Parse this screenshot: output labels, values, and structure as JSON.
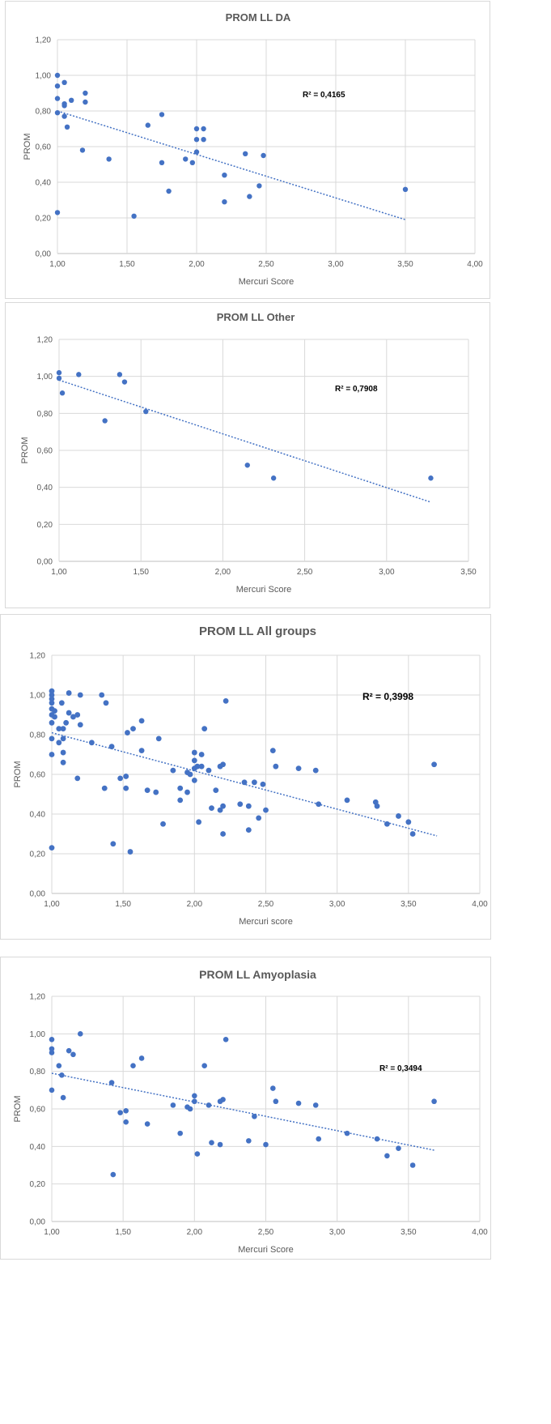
{
  "chart_data": [
    {
      "type": "scatter",
      "title": "PROM LL DA",
      "xlabel": "Mercuri Score",
      "ylabel": "PROM",
      "xlim": [
        1.0,
        4.0
      ],
      "ylim": [
        0.0,
        1.2
      ],
      "xticks": [
        "1,00",
        "1,50",
        "2,00",
        "2,50",
        "3,00",
        "3,50",
        "4,00"
      ],
      "yticks": [
        "0,00",
        "0,20",
        "0,40",
        "0,60",
        "0,80",
        "1,00",
        "1,20"
      ],
      "r2_label": "R² = 0,4165",
      "trendline": {
        "x": [
          1.0,
          3.5
        ],
        "y": [
          0.8,
          0.19
        ]
      },
      "grid": true,
      "series": [
        {
          "color": "#4472c4",
          "points": [
            [
              1.0,
              1.0
            ],
            [
              1.0,
              0.94
            ],
            [
              1.0,
              0.87
            ],
            [
              1.0,
              0.79
            ],
            [
              1.0,
              0.23
            ],
            [
              1.05,
              0.96
            ],
            [
              1.05,
              0.84
            ],
            [
              1.05,
              0.83
            ],
            [
              1.05,
              0.77
            ],
            [
              1.07,
              0.71
            ],
            [
              1.1,
              0.86
            ],
            [
              1.2,
              0.9
            ],
            [
              1.2,
              0.85
            ],
            [
              1.18,
              0.58
            ],
            [
              1.37,
              0.53
            ],
            [
              1.55,
              0.21
            ],
            [
              1.65,
              0.72
            ],
            [
              1.75,
              0.78
            ],
            [
              1.75,
              0.51
            ],
            [
              1.8,
              0.35
            ],
            [
              1.92,
              0.53
            ],
            [
              1.97,
              0.51
            ],
            [
              2.0,
              0.7
            ],
            [
              2.0,
              0.64
            ],
            [
              2.0,
              0.57
            ],
            [
              2.05,
              0.7
            ],
            [
              2.05,
              0.64
            ],
            [
              2.2,
              0.44
            ],
            [
              2.2,
              0.29
            ],
            [
              2.35,
              0.56
            ],
            [
              2.38,
              0.32
            ],
            [
              2.45,
              0.38
            ],
            [
              2.48,
              0.55
            ],
            [
              3.5,
              0.36
            ]
          ]
        }
      ]
    },
    {
      "type": "scatter",
      "title": "PROM LL Other",
      "xlabel": "Mercuri Score",
      "ylabel": "PROM",
      "xlim": [
        1.0,
        3.5
      ],
      "ylim": [
        0.0,
        1.2
      ],
      "xticks": [
        "1,00",
        "1,50",
        "2,00",
        "2,50",
        "3,00",
        "3,50"
      ],
      "yticks": [
        "0,00",
        "0,20",
        "0,40",
        "0,60",
        "0,80",
        "1,00",
        "1,20"
      ],
      "r2_label": "R² = 0,7908",
      "trendline": {
        "x": [
          1.0,
          3.27
        ],
        "y": [
          0.98,
          0.32
        ]
      },
      "grid": true,
      "series": [
        {
          "color": "#4472c4",
          "points": [
            [
              1.0,
              1.02
            ],
            [
              1.0,
              0.99
            ],
            [
              1.02,
              0.91
            ],
            [
              1.12,
              1.01
            ],
            [
              1.28,
              0.76
            ],
            [
              1.37,
              1.01
            ],
            [
              1.4,
              0.97
            ],
            [
              1.53,
              0.81
            ],
            [
              2.15,
              0.52
            ],
            [
              2.31,
              0.45
            ],
            [
              3.27,
              0.45
            ]
          ]
        }
      ]
    },
    {
      "type": "scatter",
      "title": "PROM LL All groups",
      "xlabel": "Mercuri score",
      "ylabel": "PROM",
      "xlim": [
        1.0,
        4.0
      ],
      "ylim": [
        0.0,
        1.2
      ],
      "xticks": [
        "1,00",
        "1,50",
        "2,00",
        "2,50",
        "3,00",
        "3,50",
        "4,00"
      ],
      "yticks": [
        "0,00",
        "0,20",
        "0,40",
        "0,60",
        "0,80",
        "1,00",
        "1,20"
      ],
      "r2_label": "R² = 0,3998",
      "trendline": {
        "x": [
          1.0,
          3.7
        ],
        "y": [
          0.81,
          0.29
        ]
      },
      "grid": true,
      "series": [
        {
          "color": "#4472c4",
          "points": [
            [
              1.0,
              1.02
            ],
            [
              1.0,
              1.0
            ],
            [
              1.0,
              0.98
            ],
            [
              1.0,
              0.96
            ],
            [
              1.0,
              0.93
            ],
            [
              1.0,
              0.9
            ],
            [
              1.0,
              0.86
            ],
            [
              1.0,
              0.78
            ],
            [
              1.0,
              0.7
            ],
            [
              1.0,
              0.23
            ],
            [
              1.02,
              0.92
            ],
            [
              1.02,
              0.89
            ],
            [
              1.05,
              0.83
            ],
            [
              1.05,
              0.76
            ],
            [
              1.07,
              0.96
            ],
            [
              1.08,
              0.83
            ],
            [
              1.08,
              0.71
            ],
            [
              1.08,
              0.66
            ],
            [
              1.08,
              0.78
            ],
            [
              1.1,
              0.86
            ],
            [
              1.12,
              1.01
            ],
            [
              1.12,
              0.91
            ],
            [
              1.15,
              0.89
            ],
            [
              1.18,
              0.58
            ],
            [
              1.18,
              0.9
            ],
            [
              1.2,
              1.0
            ],
            [
              1.2,
              0.85
            ],
            [
              1.28,
              0.76
            ],
            [
              1.35,
              1.0
            ],
            [
              1.37,
              0.53
            ],
            [
              1.38,
              0.96
            ],
            [
              1.42,
              0.74
            ],
            [
              1.43,
              0.25
            ],
            [
              1.48,
              0.58
            ],
            [
              1.52,
              0.59
            ],
            [
              1.52,
              0.53
            ],
            [
              1.53,
              0.81
            ],
            [
              1.55,
              0.21
            ],
            [
              1.57,
              0.83
            ],
            [
              1.63,
              0.72
            ],
            [
              1.63,
              0.87
            ],
            [
              1.67,
              0.52
            ],
            [
              1.73,
              0.51
            ],
            [
              1.75,
              0.78
            ],
            [
              1.78,
              0.35
            ],
            [
              1.85,
              0.62
            ],
            [
              1.9,
              0.53
            ],
            [
              1.9,
              0.47
            ],
            [
              1.95,
              0.61
            ],
            [
              1.95,
              0.51
            ],
            [
              1.97,
              0.6
            ],
            [
              2.0,
              0.71
            ],
            [
              2.0,
              0.67
            ],
            [
              2.0,
              0.63
            ],
            [
              2.0,
              0.57
            ],
            [
              2.02,
              0.64
            ],
            [
              2.03,
              0.36
            ],
            [
              2.05,
              0.7
            ],
            [
              2.05,
              0.64
            ],
            [
              2.07,
              0.83
            ],
            [
              2.1,
              0.62
            ],
            [
              2.12,
              0.43
            ],
            [
              2.15,
              0.52
            ],
            [
              2.18,
              0.42
            ],
            [
              2.18,
              0.64
            ],
            [
              2.2,
              0.65
            ],
            [
              2.2,
              0.44
            ],
            [
              2.2,
              0.3
            ],
            [
              2.22,
              0.97
            ],
            [
              2.32,
              0.45
            ],
            [
              2.35,
              0.56
            ],
            [
              2.38,
              0.44
            ],
            [
              2.38,
              0.32
            ],
            [
              2.42,
              0.56
            ],
            [
              2.45,
              0.38
            ],
            [
              2.48,
              0.55
            ],
            [
              2.5,
              0.42
            ],
            [
              2.55,
              0.72
            ],
            [
              2.57,
              0.64
            ],
            [
              2.73,
              0.63
            ],
            [
              2.85,
              0.62
            ],
            [
              2.87,
              0.45
            ],
            [
              3.07,
              0.47
            ],
            [
              3.27,
              0.46
            ],
            [
              3.28,
              0.44
            ],
            [
              3.35,
              0.35
            ],
            [
              3.43,
              0.39
            ],
            [
              3.5,
              0.36
            ],
            [
              3.53,
              0.3
            ],
            [
              3.68,
              0.65
            ]
          ]
        }
      ]
    },
    {
      "type": "scatter",
      "title": "PROM LL Amyoplasia",
      "xlabel": "Mercuri Score",
      "ylabel": "PROM",
      "xlim": [
        1.0,
        4.0
      ],
      "ylim": [
        0.0,
        1.2
      ],
      "xticks": [
        "1,00",
        "1,50",
        "2,00",
        "2,50",
        "3,00",
        "3,50",
        "4,00"
      ],
      "yticks": [
        "0,00",
        "0,20",
        "0,40",
        "0,60",
        "0,80",
        "1,00",
        "1,20"
      ],
      "r2_label": "R² = 0,3494",
      "trendline": {
        "x": [
          1.0,
          3.68
        ],
        "y": [
          0.79,
          0.38
        ]
      },
      "grid": true,
      "series": [
        {
          "color": "#4472c4",
          "points": [
            [
              1.0,
              0.97
            ],
            [
              1.0,
              0.92
            ],
            [
              1.0,
              0.9
            ],
            [
              1.0,
              0.7
            ],
            [
              1.05,
              0.83
            ],
            [
              1.07,
              0.78
            ],
            [
              1.08,
              0.66
            ],
            [
              1.12,
              0.91
            ],
            [
              1.15,
              0.89
            ],
            [
              1.2,
              1.0
            ],
            [
              1.42,
              0.74
            ],
            [
              1.43,
              0.25
            ],
            [
              1.48,
              0.58
            ],
            [
              1.52,
              0.59
            ],
            [
              1.52,
              0.53
            ],
            [
              1.57,
              0.83
            ],
            [
              1.63,
              0.87
            ],
            [
              1.67,
              0.52
            ],
            [
              1.85,
              0.62
            ],
            [
              1.9,
              0.47
            ],
            [
              1.95,
              0.61
            ],
            [
              1.97,
              0.6
            ],
            [
              2.0,
              0.67
            ],
            [
              2.0,
              0.64
            ],
            [
              2.02,
              0.36
            ],
            [
              2.07,
              0.83
            ],
            [
              2.1,
              0.62
            ],
            [
              2.12,
              0.42
            ],
            [
              2.18,
              0.41
            ],
            [
              2.18,
              0.64
            ],
            [
              2.2,
              0.65
            ],
            [
              2.22,
              0.97
            ],
            [
              2.38,
              0.43
            ],
            [
              2.42,
              0.56
            ],
            [
              2.5,
              0.41
            ],
            [
              2.55,
              0.71
            ],
            [
              2.57,
              0.64
            ],
            [
              2.73,
              0.63
            ],
            [
              2.85,
              0.62
            ],
            [
              2.87,
              0.44
            ],
            [
              3.07,
              0.47
            ],
            [
              3.28,
              0.44
            ],
            [
              3.35,
              0.35
            ],
            [
              3.43,
              0.39
            ],
            [
              3.53,
              0.3
            ],
            [
              3.68,
              0.64
            ]
          ]
        }
      ]
    }
  ]
}
